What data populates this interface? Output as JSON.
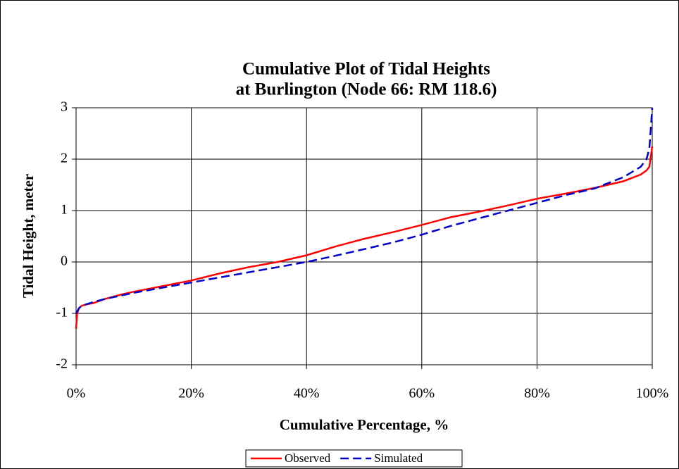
{
  "chart_data": {
    "type": "line",
    "title": "Cumulative Plot of Tidal Heights",
    "subtitle": "at Burlington (Node 66: RM 118.6)",
    "x_label": "Cumulative Percentage, %",
    "y_label": "Tidal Height, meter",
    "xlim": [
      0,
      100
    ],
    "ylim": [
      -2,
      3
    ],
    "xticks": [
      {
        "value": 0,
        "label": "0%"
      },
      {
        "value": 20,
        "label": "20%"
      },
      {
        "value": 40,
        "label": "40%"
      },
      {
        "value": 60,
        "label": "60%"
      },
      {
        "value": 80,
        "label": "80%"
      },
      {
        "value": 100,
        "label": "100%"
      }
    ],
    "yticks": [
      -2,
      -1,
      0,
      1,
      2,
      3
    ],
    "grid": true,
    "legend": "bottom",
    "series": [
      {
        "name": "Observed",
        "color": "#ff0000",
        "line_style": "solid",
        "x": [
          0,
          0.2,
          0.5,
          1,
          2,
          3,
          5,
          8,
          10,
          15,
          20,
          25,
          30,
          35,
          40,
          45,
          50,
          55,
          60,
          65,
          70,
          75,
          80,
          85,
          90,
          95,
          98,
          99,
          99.5,
          100
        ],
        "values": [
          -1.3,
          -1.0,
          -0.9,
          -0.85,
          -0.82,
          -0.8,
          -0.72,
          -0.63,
          -0.58,
          -0.47,
          -0.36,
          -0.22,
          -0.1,
          0.0,
          0.13,
          0.3,
          0.45,
          0.58,
          0.72,
          0.87,
          0.98,
          1.1,
          1.23,
          1.33,
          1.44,
          1.57,
          1.7,
          1.78,
          1.85,
          2.25
        ]
      },
      {
        "name": "Simulated",
        "color": "#0000cc",
        "line_style": "dashed",
        "x": [
          0,
          0.5,
          1,
          3,
          5,
          10,
          15,
          20,
          25,
          30,
          35,
          40,
          45,
          50,
          55,
          60,
          65,
          70,
          75,
          80,
          85,
          90,
          95,
          98,
          99,
          99.5,
          100
        ],
        "values": [
          -1.0,
          -0.9,
          -0.85,
          -0.78,
          -0.72,
          -0.6,
          -0.5,
          -0.4,
          -0.3,
          -0.2,
          -0.1,
          0.0,
          0.12,
          0.25,
          0.38,
          0.53,
          0.7,
          0.85,
          1.0,
          1.15,
          1.3,
          1.43,
          1.65,
          1.85,
          2.0,
          2.2,
          3.0
        ]
      }
    ]
  }
}
